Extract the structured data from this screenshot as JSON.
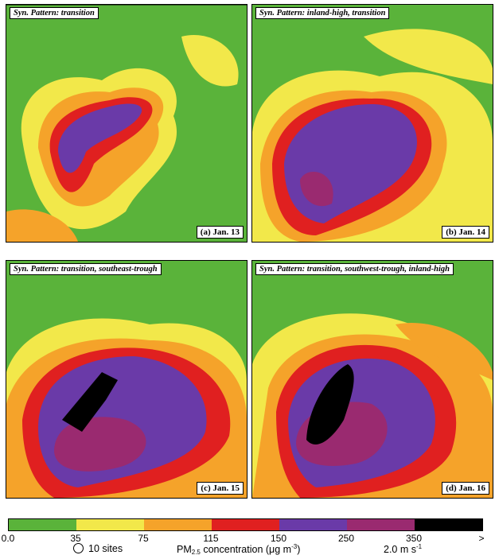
{
  "panels": [
    {
      "title": "Syn. Pattern: transition",
      "label": "(a) Jan. 13"
    },
    {
      "title": "Syn. Pattern: inland-high, transition",
      "label": "(b) Jan. 14"
    },
    {
      "title": "Syn. Pattern: transition, southeast-trough",
      "label": "(c) Jan. 15"
    },
    {
      "title": "Syn. Pattern: transition, southwest-trough, inland-high",
      "label": "(d) Jan. 16"
    }
  ],
  "colorbar": {
    "colors": [
      "#5ab33a",
      "#f2e84a",
      "#f5a32a",
      "#e02020",
      "#6a3aa8",
      "#9a2a70",
      "#000000"
    ],
    "ticks": [
      "0.0",
      "35",
      "75",
      "115",
      "150",
      "250",
      "350",
      ">"
    ]
  },
  "legend": {
    "sites": "10 sites",
    "pm_prefix": "PM",
    "pm_sub": "2.5",
    "pm_text": " concentration (",
    "pm_unit": "μg m",
    "pm_exp": "-3",
    "pm_close": ")",
    "wind_value": "2.0",
    "wind_unit": " m s",
    "wind_exp": "-1"
  }
}
